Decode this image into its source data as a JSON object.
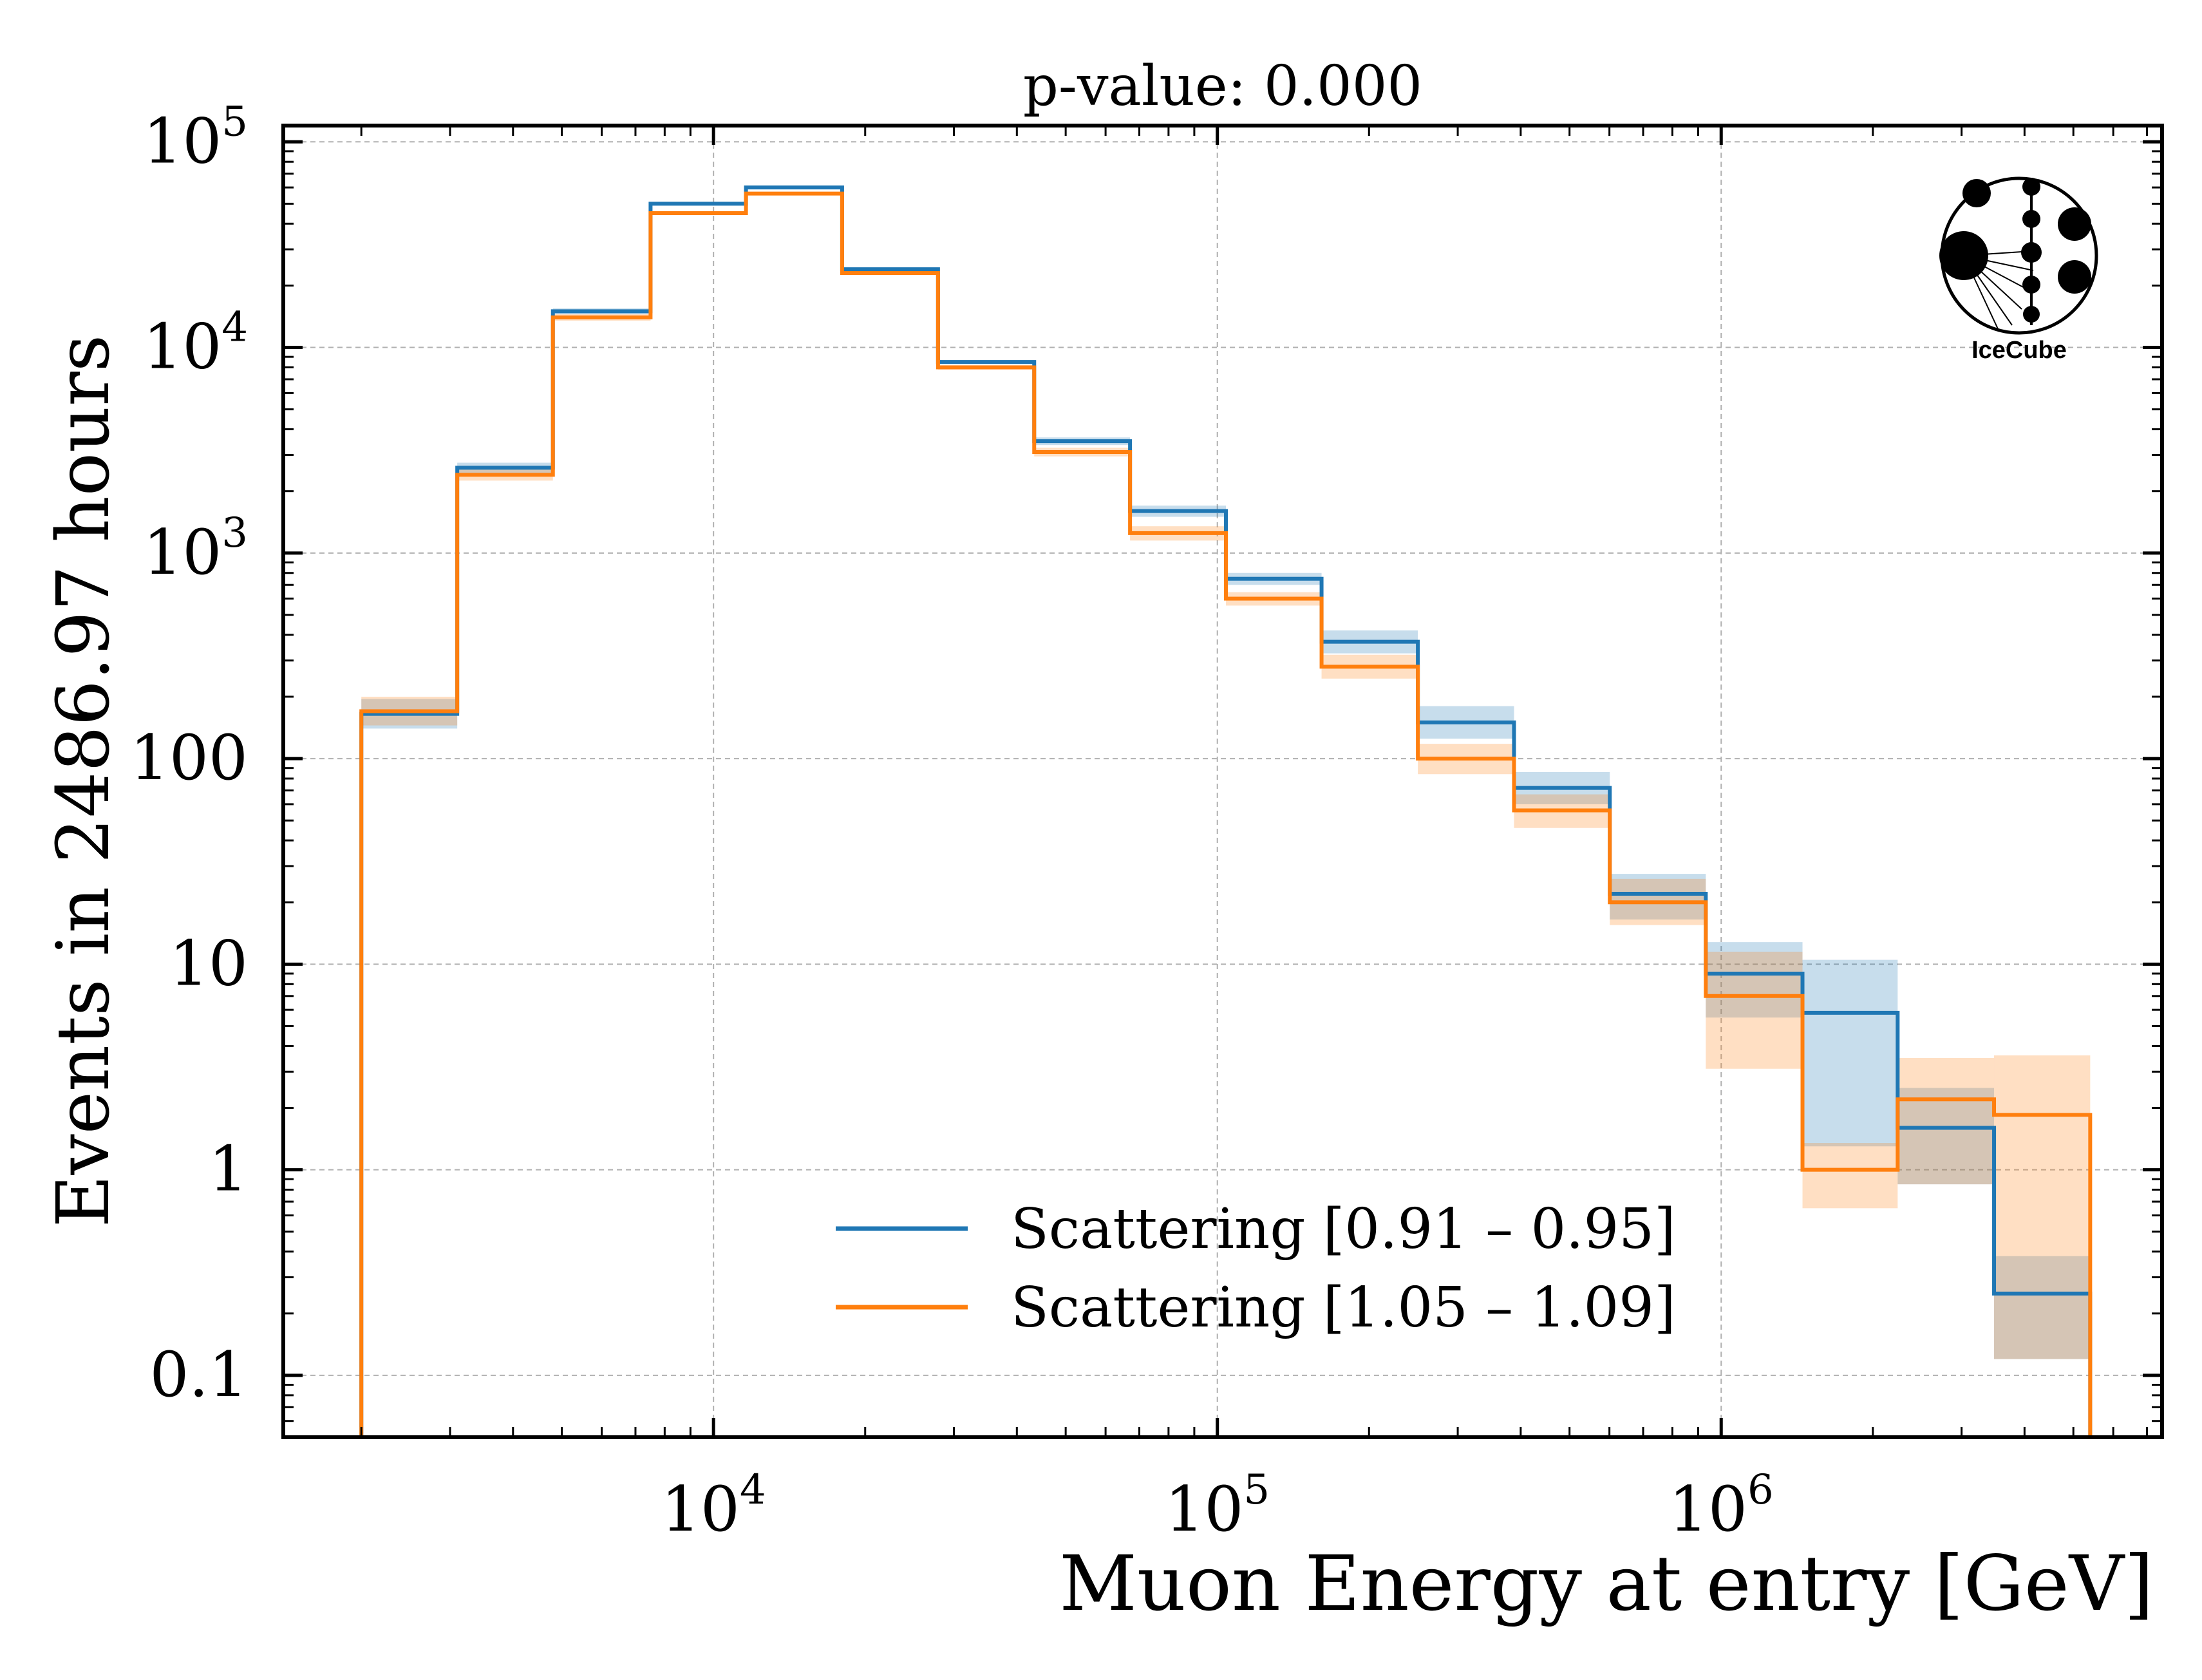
{
  "chart_data": {
    "type": "step",
    "title": "p-value: 0.000",
    "xlabel": "Muon Energy at entry [GeV]",
    "ylabel": "Events in 2486.97 hours",
    "xscale": "log",
    "yscale": "log",
    "xlim": [
      1400,
      7500000
    ],
    "ylim": [
      0.05,
      120000
    ],
    "grid": true,
    "legend_position": "lower center",
    "x_ticks": [
      {
        "base": "10",
        "exp": "4",
        "value": 10000
      },
      {
        "base": "10",
        "exp": "5",
        "value": 100000
      },
      {
        "base": "10",
        "exp": "6",
        "value": 1000000
      }
    ],
    "y_ticks": [
      {
        "label": "0.1",
        "value": 0.1
      },
      {
        "label": "1",
        "value": 1
      },
      {
        "label": "10",
        "value": 10
      },
      {
        "label": "100",
        "value": 100
      },
      {
        "base": "10",
        "exp": "3",
        "value": 1000
      },
      {
        "base": "10",
        "exp": "4",
        "value": 10000
      },
      {
        "base": "10",
        "exp": "5",
        "value": 100000
      }
    ],
    "bin_edges": [
      2000,
      3100,
      4800,
      7500,
      11600,
      18000,
      27900,
      43300,
      67100,
      104000,
      161000,
      250000,
      388000,
      601000,
      932000,
      1450000,
      2240000,
      3480000,
      5400000
    ],
    "series": [
      {
        "name": "Scattering [0.91 – 0.95]",
        "color": "#1f77b4",
        "values": [
          165,
          2600,
          15000,
          50000,
          60000,
          24000,
          8500,
          3500,
          1600,
          750,
          370,
          150,
          72,
          22,
          9,
          5.8,
          1.6,
          0.25
        ],
        "err_low": [
          140,
          2450,
          14500,
          49000,
          59000,
          23500,
          8300,
          3350,
          1500,
          700,
          325,
          125,
          60,
          16.5,
          5.5,
          1.3,
          0.85,
          0.12
        ],
        "err_high": [
          195,
          2750,
          15500,
          51000,
          61000,
          24500,
          8700,
          3650,
          1700,
          800,
          420,
          180,
          86,
          27.5,
          12.8,
          10.5,
          2.5,
          0.38
        ]
      },
      {
        "name": "Scattering [1.05 – 1.09]",
        "color": "#ff7f0e",
        "values": [
          170,
          2400,
          14000,
          45000,
          56000,
          23000,
          8000,
          3100,
          1250,
          600,
          280,
          100,
          56,
          20,
          7,
          1,
          2.2,
          1.85
        ],
        "err_low": [
          145,
          2250,
          13500,
          44000,
          55000,
          22500,
          7800,
          2950,
          1150,
          555,
          245,
          84,
          46,
          15.5,
          3.1,
          0.65,
          0.85,
          0.12
        ],
        "err_high": [
          200,
          2550,
          14500,
          46000,
          57000,
          23500,
          8200,
          3250,
          1350,
          645,
          320,
          118,
          67,
          26,
          11.5,
          1.35,
          3.5,
          3.6
        ]
      }
    ]
  },
  "logo": {
    "text": "IceCube"
  }
}
